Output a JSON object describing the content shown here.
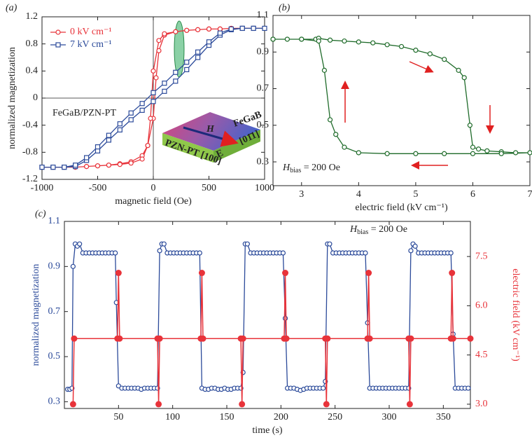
{
  "chart_data": [
    {
      "type": "line",
      "panel": "(a)",
      "xlabel": "magnetic field (Oe)",
      "ylabel": "normalized magnetization",
      "xlim": [
        -1000,
        1000
      ],
      "xticks": [
        -1000,
        -500,
        0,
        500,
        1000
      ],
      "ylim": [
        -1.2,
        1.2
      ],
      "yticks": [
        -1.2,
        -0.8,
        -0.4,
        0,
        0.4,
        0.8,
        1.2
      ],
      "crosshair": true,
      "legend": "upper left",
      "annotation": "FeGaB/PZN-PT",
      "inset": {
        "top": "FeGaB",
        "field": "H",
        "substrate": "PZN-PT [100]",
        "efield": "E",
        "direction": "[01̄1]"
      },
      "series": [
        {
          "name": "0 kV cm⁻¹",
          "color": "#e8333a",
          "marker": "circle",
          "x": [
            -1000,
            -900,
            -800,
            -700,
            -600,
            -500,
            -400,
            -300,
            -200,
            -100,
            -50,
            0,
            25,
            50,
            100,
            200,
            300,
            400,
            500,
            600,
            700,
            800,
            900,
            1000,
            900,
            800,
            700,
            600,
            500,
            400,
            300,
            200,
            100,
            50,
            0,
            -25,
            -50,
            -100,
            -200,
            -300,
            -400,
            -500,
            -600,
            -700,
            -800,
            -900,
            -1000
          ],
          "values": [
            -1.02,
            -1.02,
            -1.02,
            -1.02,
            -1.01,
            -1.0,
            -0.99,
            -0.97,
            -0.94,
            -0.85,
            -0.7,
            -0.3,
            0.3,
            0.7,
            0.93,
            0.98,
            1.0,
            1.01,
            1.02,
            1.02,
            1.03,
            1.03,
            1.03,
            1.03,
            1.03,
            1.03,
            1.03,
            1.02,
            1.02,
            1.01,
            1.0,
            0.98,
            0.95,
            0.85,
            0.4,
            -0.3,
            -0.7,
            -0.9,
            -0.96,
            -0.98,
            -0.99,
            -1.0,
            -1.01,
            -1.02,
            -1.02,
            -1.02,
            -1.02
          ]
        },
        {
          "name": "7 kV cm⁻¹",
          "color": "#2b4a9a",
          "marker": "square",
          "x": [
            -1000,
            -900,
            -800,
            -700,
            -600,
            -500,
            -400,
            -300,
            -200,
            -100,
            0,
            100,
            200,
            300,
            400,
            500,
            600,
            700,
            800,
            900,
            1000,
            900,
            800,
            700,
            600,
            500,
            400,
            300,
            200,
            100,
            0,
            -100,
            -200,
            -300,
            -400,
            -500,
            -600,
            -700,
            -800,
            -900,
            -1000
          ],
          "values": [
            -1.02,
            -1.02,
            -1.02,
            -1.01,
            -0.92,
            -0.78,
            -0.62,
            -0.47,
            -0.32,
            -0.18,
            -0.05,
            0.1,
            0.25,
            0.42,
            0.6,
            0.78,
            0.93,
            1.01,
            1.03,
            1.03,
            1.03,
            1.03,
            1.03,
            1.02,
            0.96,
            0.83,
            0.68,
            0.53,
            0.38,
            0.22,
            0.08,
            -0.08,
            -0.22,
            -0.38,
            -0.55,
            -0.72,
            -0.88,
            -0.99,
            -1.02,
            -1.02,
            -1.02
          ]
        }
      ]
    },
    {
      "type": "line",
      "panel": "(b)",
      "xlabel": "electric field (kV cm⁻¹)",
      "xlim": [
        2.5,
        7
      ],
      "xticks": [
        3,
        4,
        5,
        6,
        7
      ],
      "ylim": [
        0.17,
        1.1
      ],
      "yticks": [
        0.3,
        0.5,
        0.7,
        0.9,
        1.1
      ],
      "annotation": {
        "symbol": "H",
        "subscript": "bias",
        "text": " = 200 Oe"
      },
      "series": [
        {
          "color": "#1f6b2a",
          "marker": "circle",
          "x": [
            2.5,
            2.75,
            3.0,
            3.25,
            3.3,
            3.5,
            3.75,
            4.0,
            4.25,
            4.5,
            4.75,
            5.0,
            5.25,
            5.5,
            5.75,
            5.85,
            5.95,
            6.0,
            6.1,
            6.25,
            6.5,
            6.75,
            7,
            6.5,
            6,
            5.5,
            5,
            4.5,
            4,
            3.75,
            3.6,
            3.5,
            3.4,
            3.3,
            3.0,
            2.5
          ],
          "values": [
            0.97,
            0.97,
            0.97,
            0.97,
            0.975,
            0.965,
            0.96,
            0.955,
            0.95,
            0.94,
            0.93,
            0.91,
            0.89,
            0.86,
            0.8,
            0.76,
            0.5,
            0.38,
            0.37,
            0.36,
            0.355,
            0.35,
            0.35,
            0.345,
            0.345,
            0.345,
            0.345,
            0.345,
            0.35,
            0.38,
            0.45,
            0.53,
            0.8,
            0.96,
            0.97,
            0.97
          ]
        }
      ]
    },
    {
      "type": "line",
      "panel": "(c)",
      "xlabel": "time (s)",
      "ylabel": "normalized magnetization",
      "y2label": "electric field (kV cm⁻¹)",
      "xlim": [
        0,
        375
      ],
      "xticks": [
        50,
        100,
        150,
        200,
        250,
        300,
        350
      ],
      "ylim": [
        0.27,
        1.1
      ],
      "yticks": [
        0.3,
        0.5,
        0.7,
        0.9,
        1.1
      ],
      "ycolor": "#2b4a9a",
      "y2lim": [
        2.87,
        8.57
      ],
      "y2ticks": [
        {
          "value": 3,
          "label": "3.0"
        },
        4.5,
        {
          "value": 6,
          "label": "6.0"
        },
        7.5
      ],
      "y2color": "#e8333a",
      "annotation": {
        "symbol": "H",
        "subscript": "bias",
        "text": " = 200 Oe"
      },
      "series": [
        {
          "color": "#2b4a9a",
          "marker": "circle",
          "x": [
            3,
            5,
            7,
            8,
            10,
            12,
            14,
            17,
            20,
            23,
            26,
            29,
            32,
            35,
            38,
            41,
            44,
            47,
            48,
            50,
            53,
            56,
            59,
            62,
            65,
            68,
            71,
            74,
            77,
            80,
            83,
            86,
            88,
            90,
            92,
            95,
            98,
            101,
            104,
            107,
            110,
            113,
            116,
            119,
            122,
            125,
            127,
            130,
            133,
            136,
            139,
            142,
            145,
            148,
            151,
            154,
            157,
            160,
            163,
            165,
            167,
            169,
            172,
            175,
            178,
            181,
            184,
            187,
            190,
            193,
            196,
            199,
            202,
            204,
            206,
            209,
            212,
            215,
            218,
            221,
            224,
            227,
            230,
            233,
            236,
            239,
            241,
            243,
            245,
            248,
            251,
            254,
            257,
            260,
            263,
            266,
            269,
            272,
            275,
            278,
            280,
            282,
            285,
            288,
            291,
            294,
            297,
            300,
            303,
            306,
            309,
            312,
            315,
            318,
            320,
            322,
            324,
            327,
            330,
            333,
            336,
            339,
            342,
            345,
            348,
            351,
            354,
            357,
            359,
            361,
            364,
            367,
            370,
            373
          ],
          "values": [
            0.355,
            0.355,
            0.36,
            0.9,
            1.0,
            0.99,
            1.0,
            0.96,
            0.96,
            0.96,
            0.96,
            0.96,
            0.96,
            0.96,
            0.96,
            0.96,
            0.96,
            0.96,
            0.74,
            0.37,
            0.36,
            0.36,
            0.36,
            0.36,
            0.36,
            0.36,
            0.355,
            0.36,
            0.36,
            0.36,
            0.36,
            0.36,
            0.97,
            1.0,
            1.0,
            0.96,
            0.96,
            0.96,
            0.96,
            0.96,
            0.96,
            0.96,
            0.96,
            0.96,
            0.96,
            0.96,
            0.36,
            0.355,
            0.355,
            0.36,
            0.36,
            0.355,
            0.355,
            0.36,
            0.355,
            0.355,
            0.36,
            0.36,
            0.36,
            0.43,
            1.0,
            1.0,
            0.96,
            0.96,
            0.96,
            0.96,
            0.96,
            0.96,
            0.96,
            0.96,
            0.96,
            0.96,
            0.96,
            0.67,
            0.36,
            0.36,
            0.36,
            0.355,
            0.35,
            0.355,
            0.36,
            0.36,
            0.36,
            0.36,
            0.36,
            0.36,
            0.39,
            1.0,
            1.0,
            0.96,
            0.96,
            0.96,
            0.96,
            0.96,
            0.96,
            0.96,
            0.96,
            0.96,
            0.96,
            0.96,
            0.65,
            0.36,
            0.36,
            0.36,
            0.36,
            0.36,
            0.36,
            0.36,
            0.36,
            0.36,
            0.36,
            0.36,
            0.36,
            0.36,
            0.97,
            1.0,
            0.99,
            0.96,
            0.96,
            0.96,
            0.96,
            0.96,
            0.96,
            0.96,
            0.96,
            0.96,
            0.96,
            0.96,
            0.6,
            0.36,
            0.36,
            0.36,
            0.36,
            0.36
          ]
        },
        {
          "color": "#e8333a",
          "marker": "dot",
          "axis": "y2",
          "x": [
            8,
            9,
            49,
            50,
            51,
            86,
            87,
            88,
            126,
            127,
            128,
            163,
            164,
            165,
            203,
            204,
            205,
            241,
            242,
            243,
            280,
            281,
            282,
            318,
            319,
            320,
            357,
            358,
            359,
            375
          ],
          "values": [
            3,
            5,
            5,
            7,
            5,
            5,
            3,
            5,
            5,
            7,
            5,
            5,
            3,
            5,
            5,
            7,
            5,
            5,
            3,
            5,
            5,
            7,
            5,
            5,
            3,
            5,
            5,
            7,
            5,
            5
          ]
        }
      ]
    }
  ]
}
